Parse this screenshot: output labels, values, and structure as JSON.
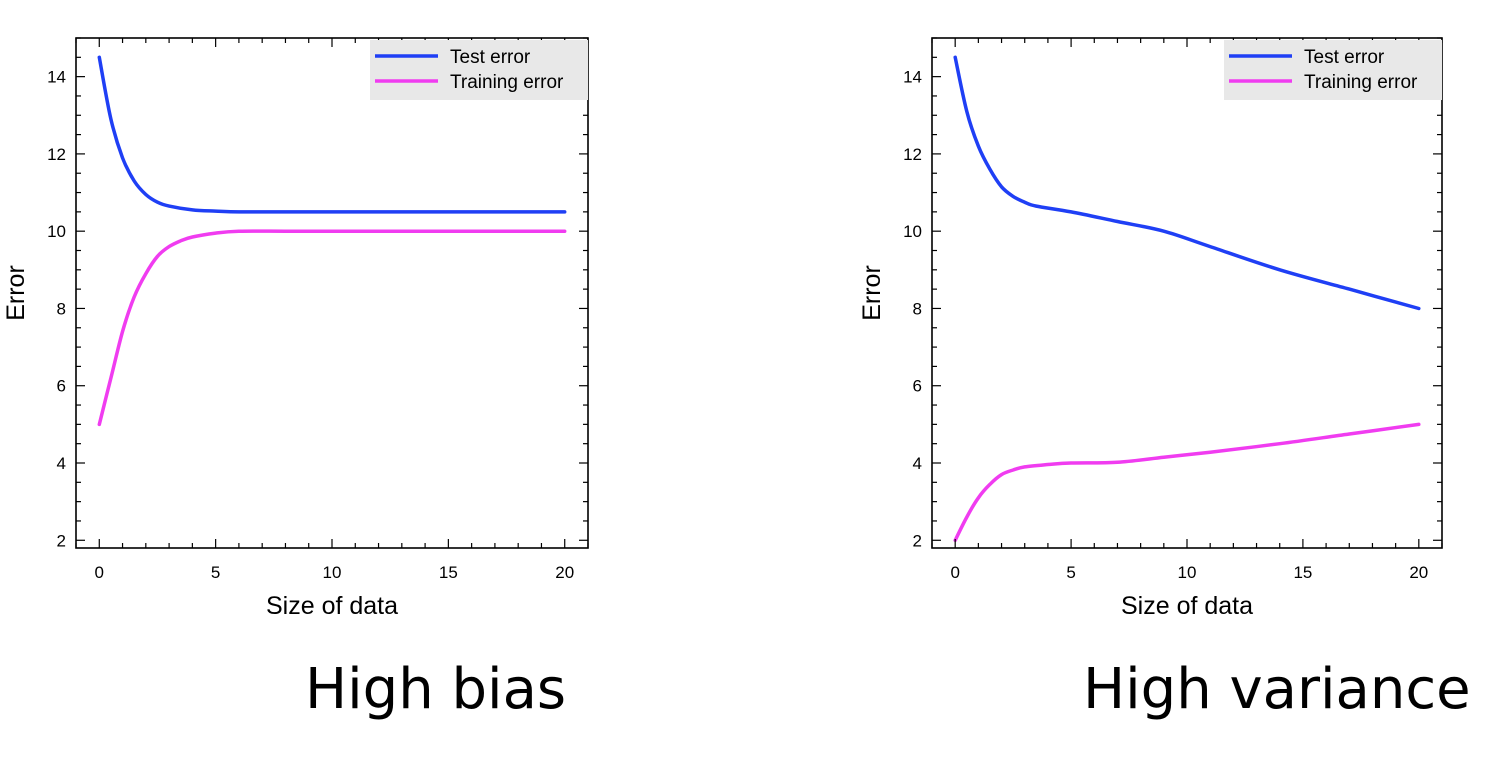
{
  "chart_data": [
    {
      "type": "line",
      "caption": "High bias",
      "xlabel": "Size of data",
      "ylabel": "Error",
      "xlim": [
        -1,
        21
      ],
      "ylim": [
        1.8,
        15
      ],
      "xticks": [
        0,
        5,
        10,
        15,
        20
      ],
      "yticks": [
        2,
        4,
        6,
        8,
        10,
        12,
        14
      ],
      "legend_position": "top-right",
      "grid": false,
      "series": [
        {
          "name": "Test error",
          "color": "#1f3ff5",
          "x": [
            0,
            0.5,
            1,
            1.5,
            2,
            2.5,
            3,
            4,
            5,
            6,
            8,
            10,
            15,
            20
          ],
          "y": [
            14.5,
            12.9,
            11.9,
            11.3,
            10.95,
            10.75,
            10.65,
            10.55,
            10.52,
            10.5,
            10.5,
            10.5,
            10.5,
            10.5
          ]
        },
        {
          "name": "Training error",
          "color": "#f03cf0",
          "x": [
            0,
            0.5,
            1,
            1.5,
            2,
            2.5,
            3,
            3.5,
            4,
            5,
            6,
            8,
            10,
            15,
            20
          ],
          "y": [
            5.0,
            6.2,
            7.4,
            8.3,
            8.9,
            9.35,
            9.6,
            9.75,
            9.85,
            9.95,
            10.0,
            10.0,
            10.0,
            10.0,
            10.0
          ]
        }
      ]
    },
    {
      "type": "line",
      "caption": "High variance",
      "xlabel": "Size of data",
      "ylabel": "Error",
      "xlim": [
        -1,
        21
      ],
      "ylim": [
        1.8,
        15
      ],
      "xticks": [
        0,
        5,
        10,
        15,
        20
      ],
      "yticks": [
        2,
        4,
        6,
        8,
        10,
        12,
        14
      ],
      "legend_position": "top-right",
      "grid": false,
      "series": [
        {
          "name": "Test error",
          "color": "#1f3ff5",
          "x": [
            0,
            0.5,
            1,
            1.5,
            2,
            2.5,
            3,
            3.5,
            5,
            7,
            9,
            11,
            14,
            17,
            20
          ],
          "y": [
            14.5,
            13.1,
            12.2,
            11.6,
            11.15,
            10.9,
            10.75,
            10.65,
            10.5,
            10.25,
            10.0,
            9.6,
            9.0,
            8.5,
            8.0
          ]
        },
        {
          "name": "Training error",
          "color": "#f03cf0",
          "x": [
            0,
            0.5,
            1,
            1.5,
            2,
            2.5,
            3,
            4,
            5,
            7,
            9,
            11,
            14,
            17,
            20
          ],
          "y": [
            2.0,
            2.6,
            3.1,
            3.45,
            3.7,
            3.82,
            3.9,
            3.96,
            4.0,
            4.02,
            4.15,
            4.28,
            4.5,
            4.75,
            5.0
          ]
        }
      ]
    }
  ]
}
